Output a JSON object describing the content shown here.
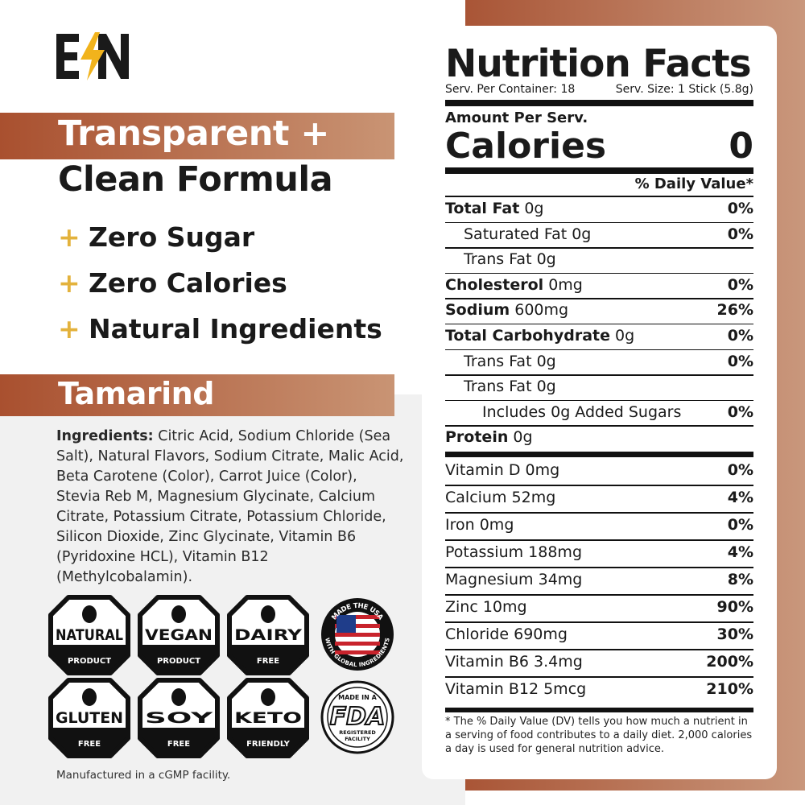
{
  "left": {
    "headline": [
      "Transparent +",
      "Clean Formula"
    ],
    "bullet_mark": "+",
    "bullets": [
      "Zero Sugar",
      "Zero Calories",
      "Natural Ingredients"
    ],
    "flavor": "Tamarind",
    "ingredients_label": "Ingredients:",
    "ingredients_text": "Citric Acid, Sodium Chloride (Sea Salt), Natural Flavors, Sodium Citrate, Malic Acid, Beta Carotene (Color), Carrot Juice (Color), Stevia Reb M, Magnesium Glycinate, Calcium Citrate, Potassium Citrate, Potassium Chloride, Silicon Dioxide, Zinc Glycinate, Vitamin B6 (Pyridoxine HCL), Vitamin B12 (Methylcobalamin).",
    "badges": [
      {
        "kind": "hex",
        "lines": [
          "NATURAL",
          "PRODUCT"
        ]
      },
      {
        "kind": "hex",
        "lines": [
          "VEGAN",
          "PRODUCT"
        ]
      },
      {
        "kind": "hex",
        "lines": [
          "DAIRY",
          "FREE"
        ]
      },
      {
        "kind": "seal",
        "lines": [
          "MADE THE USA",
          "WITH GLOBAL INGREDIENTS"
        ]
      },
      {
        "kind": "hex",
        "lines": [
          "GLUTEN",
          "FREE"
        ]
      },
      {
        "kind": "hex",
        "lines": [
          "SOY",
          "FREE"
        ]
      },
      {
        "kind": "hex",
        "lines": [
          "KETO",
          "FRIENDLY"
        ]
      },
      {
        "kind": "fda",
        "lines": [
          "MADE IN A",
          "FDA",
          "REGISTERED",
          "FACILITY"
        ]
      }
    ],
    "footer": "Manufactured in a cGMP facility."
  },
  "label": {
    "title": "Nutrition Facts",
    "servings": "Serv. Per Container: 18",
    "serving_size": "Serv. Size: 1 Stick (5.8g)",
    "amount_per": "Amount Per Serv.",
    "calories_label": "Calories",
    "calories": "0",
    "dv_header": "% Daily Value*",
    "rows": [
      {
        "name": "Total Fat",
        "amount": "0g",
        "dv": "0%",
        "bold": true,
        "indent": 0
      },
      {
        "name": "Saturated Fat",
        "amount": "0g",
        "dv": "0%",
        "bold": false,
        "indent": 1
      },
      {
        "name": "Trans Fat",
        "amount": "0g",
        "bold": false,
        "indent": 1
      },
      {
        "name": "Cholesterol",
        "amount": "0mg",
        "dv": "0%",
        "bold": true,
        "indent": 0
      },
      {
        "name": "Sodium",
        "amount": "600mg",
        "dv": "26%",
        "bold": true,
        "indent": 0
      },
      {
        "name": "Total Carbohydrate",
        "amount": "0g",
        "dv": "0%",
        "bold": true,
        "indent": 0
      },
      {
        "name": "Trans Fat",
        "amount": "0g",
        "dv": "0%",
        "bold": false,
        "indent": 1
      },
      {
        "name": "Trans Fat",
        "amount": "0g",
        "bold": false,
        "indent": 1
      },
      {
        "name": "Includes 0g Added Sugars",
        "dv": "0%",
        "bold": false,
        "indent": 2
      },
      {
        "name": "Protein",
        "amount": "0g",
        "bold": true,
        "indent": 0
      }
    ],
    "vitamins": [
      {
        "name": "Vitamin D",
        "amount": "0mg",
        "dv": "0%"
      },
      {
        "name": "Calcium",
        "amount": "52mg",
        "dv": "4%"
      },
      {
        "name": "Iron",
        "amount": "0mg",
        "dv": "0%"
      },
      {
        "name": "Potassium",
        "amount": "188mg",
        "dv": "4%"
      },
      {
        "name": "Magnesium",
        "amount": "34mg",
        "dv": "8%"
      },
      {
        "name": "Zinc",
        "amount": "10mg",
        "dv": "90%"
      },
      {
        "name": "Chloride",
        "amount": "690mg",
        "dv": "30%"
      },
      {
        "name": "Vitamin B6",
        "amount": "3.4mg",
        "dv": "200%"
      },
      {
        "name": "Vitamin B12",
        "amount": "5mcg",
        "dv": "210%"
      }
    ],
    "footnote": "* The % Daily Value (DV) tells you how much a nutrient in a serving of food contributes to a daily diet. 2,000 calories a day is used for general nutrition advice."
  }
}
